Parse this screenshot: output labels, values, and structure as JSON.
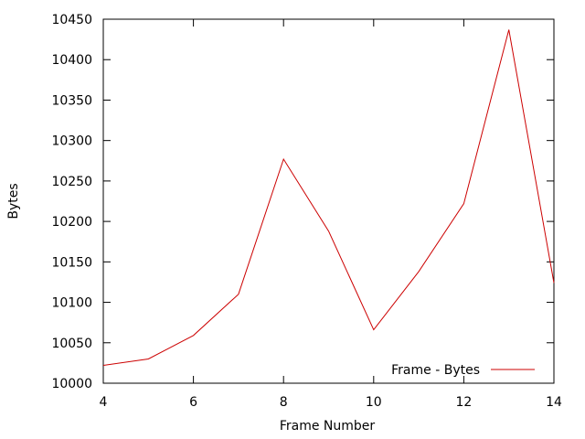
{
  "chart_data": {
    "type": "line",
    "title": "",
    "xlabel": "Frame Number",
    "ylabel": "Bytes",
    "xlim": [
      4,
      14
    ],
    "ylim": [
      10000,
      10450
    ],
    "x_ticks": [
      4,
      6,
      8,
      10,
      12,
      14
    ],
    "y_ticks": [
      10000,
      10050,
      10100,
      10150,
      10200,
      10250,
      10300,
      10350,
      10400,
      10450
    ],
    "grid": false,
    "legend_position": "bottom-right",
    "series": [
      {
        "name": "Frame - Bytes",
        "color": "#cc0000",
        "x": [
          4,
          5,
          6,
          7,
          8,
          9,
          10,
          11,
          12,
          13,
          14
        ],
        "y": [
          10022,
          10030,
          10059,
          10110,
          10277,
          10188,
          10066,
          10138,
          10222,
          10437,
          10124
        ]
      }
    ]
  }
}
